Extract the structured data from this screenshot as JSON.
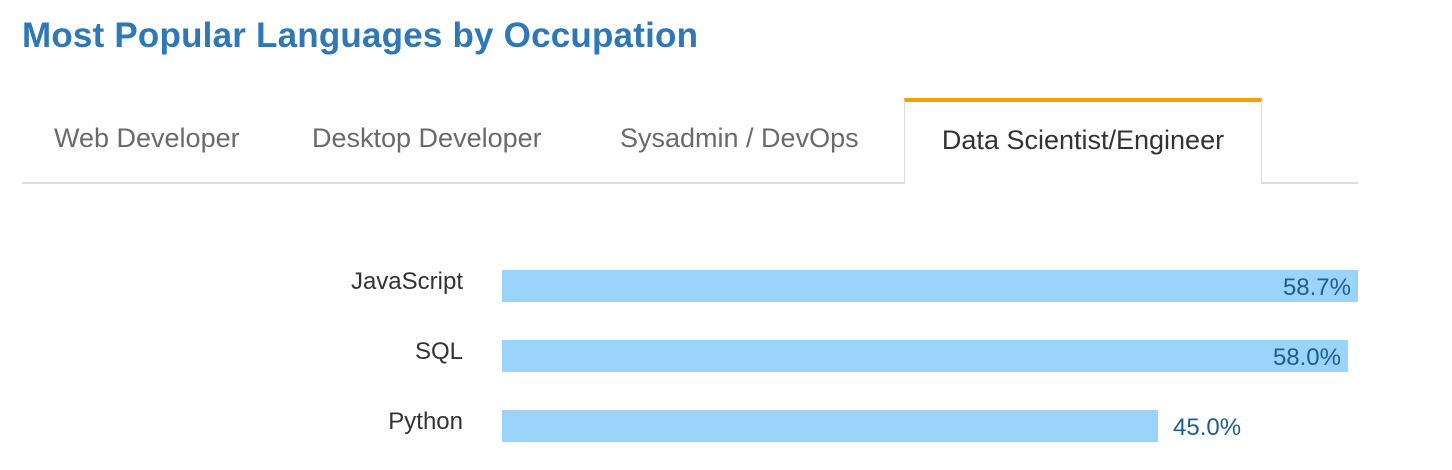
{
  "title": "Most Popular Languages by Occupation",
  "tabs": [
    {
      "label": "Web Developer",
      "active": false
    },
    {
      "label": "Desktop Developer",
      "active": false
    },
    {
      "label": "Sysadmin / DevOps",
      "active": false
    },
    {
      "label": "Data Scientist/Engineer",
      "active": true
    }
  ],
  "colors": {
    "title": "#2e78b7",
    "active_tab_accent": "#f5a000",
    "bar": "#9bd4fb",
    "value_text": "#1d5d94"
  },
  "chart_data": {
    "type": "bar",
    "orientation": "horizontal",
    "categories": [
      "JavaScript",
      "SQL",
      "Python"
    ],
    "values": [
      58.7,
      58.0,
      45.0
    ],
    "value_labels": [
      "58.7%",
      "58.0%",
      "45.0%"
    ],
    "unit": "%",
    "xlim": [
      0,
      58.7
    ],
    "grid": false
  }
}
